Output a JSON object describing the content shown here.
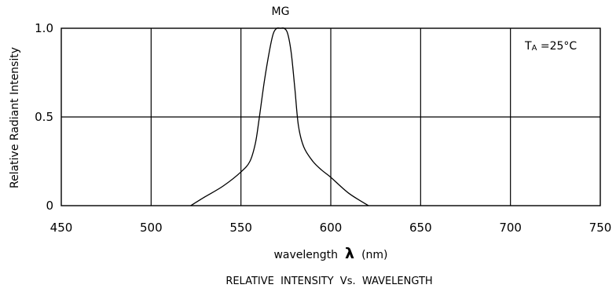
{
  "chart_data": {
    "type": "line",
    "title": "MG",
    "caption": "RELATIVE  INTENSITY  Vs.  WAVELENGTH",
    "xlabel": "wavelength",
    "xlabel_symbol": "λ",
    "xlabel_unit": "(nm)",
    "ylabel": "Relative  Radiant  Intensity",
    "annotation": {
      "main": "T",
      "sub": "A",
      "rest": " =25°C"
    },
    "xlim": [
      450,
      750
    ],
    "ylim": [
      0,
      1.0
    ],
    "x_ticks": [
      450,
      500,
      550,
      600,
      650,
      700,
      750
    ],
    "x_tick_labels": [
      "450",
      "500",
      "550",
      "600",
      "650",
      "700",
      "750"
    ],
    "y_ticks": [
      0,
      0.5,
      1.0
    ],
    "y_tick_labels": [
      "0",
      "0.5",
      "1.0"
    ],
    "grid": true,
    "series": [
      {
        "x": [
          522,
          530,
          540,
          550,
          555,
          558,
          560,
          563,
          566,
          568,
          570,
          572,
          574,
          576,
          578,
          580,
          582,
          585,
          590,
          595,
          600,
          610,
          621
        ],
        "y": [
          0.0,
          0.05,
          0.11,
          0.19,
          0.25,
          0.35,
          0.48,
          0.7,
          0.88,
          0.97,
          1.0,
          1.0,
          1.0,
          0.97,
          0.86,
          0.66,
          0.45,
          0.33,
          0.25,
          0.2,
          0.16,
          0.07,
          0.0
        ]
      }
    ]
  }
}
